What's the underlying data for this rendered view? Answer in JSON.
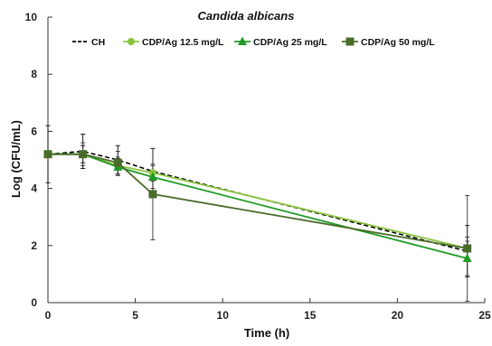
{
  "chart_data": {
    "type": "line",
    "title": "Candida albicans",
    "xlabel": "Time (h)",
    "ylabel": "Log (CFU/mL)",
    "xlim": [
      0,
      25
    ],
    "ylim": [
      0,
      10
    ],
    "x_ticks": [
      0,
      5,
      10,
      15,
      20,
      25
    ],
    "y_ticks": [
      0,
      2,
      4,
      6,
      8,
      10
    ],
    "grid": false,
    "legend_position": "top",
    "x": [
      0,
      2,
      4,
      6,
      24
    ],
    "series": [
      {
        "name": "CH",
        "color": "#000000",
        "marker": "none",
        "line": "dashed",
        "values": [
          5.2,
          5.3,
          5.0,
          4.6,
          1.8
        ],
        "errors": [
          1.0,
          0.6,
          0.5,
          0.8,
          0.9
        ]
      },
      {
        "name": "CDP/Ag 12.5 mg/L",
        "color": "#8cc43f",
        "marker": "circle",
        "line": "solid",
        "values": [
          5.2,
          5.2,
          4.8,
          4.55,
          1.9
        ],
        "errors": [
          0.0,
          0.4,
          0.3,
          0.3,
          0.4
        ]
      },
      {
        "name": "CDP/Ag 25 mg/L",
        "color": "#1f9a25",
        "marker": "triangle",
        "line": "solid",
        "values": [
          5.2,
          5.2,
          4.75,
          4.4,
          1.55
        ],
        "errors": [
          0.0,
          0.3,
          0.3,
          0.4,
          0.6
        ]
      },
      {
        "name": "CDP/Ag 50 mg/L",
        "color": "#4a6b2a",
        "marker": "square",
        "line": "solid",
        "values": [
          5.2,
          5.2,
          4.9,
          3.8,
          1.9
        ],
        "errors": [
          0.0,
          0.3,
          0.4,
          1.6,
          1.85
        ]
      }
    ]
  }
}
